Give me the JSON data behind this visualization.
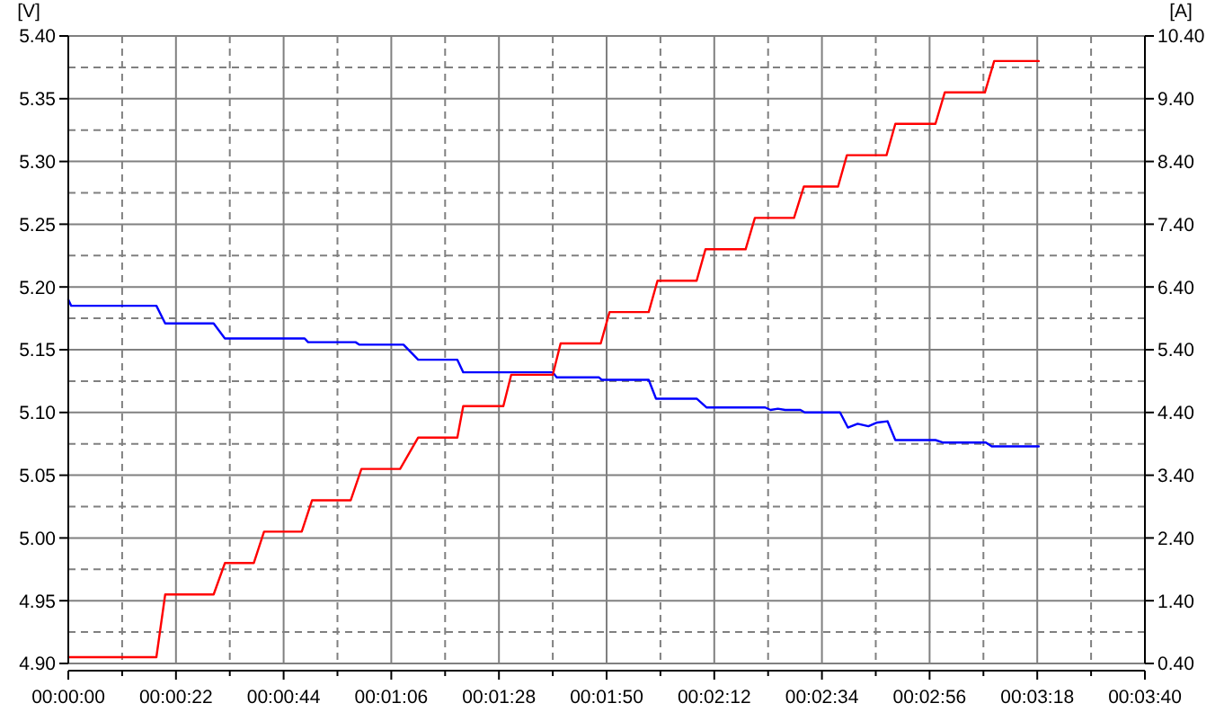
{
  "chart_data": {
    "type": "line",
    "ylabel": "[V]",
    "y2label": "[A]",
    "xlim": [
      0,
      220
    ],
    "xticks": [
      {
        "value": 0,
        "label": "00:00:00"
      },
      {
        "value": 11,
        "label": null
      },
      {
        "value": 22,
        "label": "00:00:22"
      },
      {
        "value": 33,
        "label": null
      },
      {
        "value": 44,
        "label": "00:00:44"
      },
      {
        "value": 55,
        "label": null
      },
      {
        "value": 66,
        "label": "00:01:06"
      },
      {
        "value": 77,
        "label": null
      },
      {
        "value": 88,
        "label": "00:01:28"
      },
      {
        "value": 99,
        "label": null
      },
      {
        "value": 110,
        "label": "00:01:50"
      },
      {
        "value": 121,
        "label": null
      },
      {
        "value": 132,
        "label": "00:02:12"
      },
      {
        "value": 143,
        "label": null
      },
      {
        "value": 154,
        "label": "00:02:34"
      },
      {
        "value": 165,
        "label": null
      },
      {
        "value": 176,
        "label": "00:02:56"
      },
      {
        "value": 187,
        "label": null
      },
      {
        "value": 198,
        "label": "00:03:18"
      },
      {
        "value": 209,
        "label": null
      },
      {
        "value": 220,
        "label": "00:03:40"
      }
    ],
    "ylim": [
      4.9,
      5.4
    ],
    "yticks": [
      {
        "value": 4.9,
        "label": "4.90"
      },
      {
        "value": 4.925,
        "label": null
      },
      {
        "value": 4.95,
        "label": "4.95"
      },
      {
        "value": 4.975,
        "label": null
      },
      {
        "value": 5.0,
        "label": "5.00"
      },
      {
        "value": 5.025,
        "label": null
      },
      {
        "value": 5.05,
        "label": "5.05"
      },
      {
        "value": 5.075,
        "label": null
      },
      {
        "value": 5.1,
        "label": "5.10"
      },
      {
        "value": 5.125,
        "label": null
      },
      {
        "value": 5.15,
        "label": "5.15"
      },
      {
        "value": 5.175,
        "label": null
      },
      {
        "value": 5.2,
        "label": "5.20"
      },
      {
        "value": 5.225,
        "label": null
      },
      {
        "value": 5.25,
        "label": "5.25"
      },
      {
        "value": 5.275,
        "label": null
      },
      {
        "value": 5.3,
        "label": "5.30"
      },
      {
        "value": 5.325,
        "label": null
      },
      {
        "value": 5.35,
        "label": "5.35"
      },
      {
        "value": 5.375,
        "label": null
      },
      {
        "value": 5.4,
        "label": "5.40"
      }
    ],
    "y2lim": [
      0.4,
      10.4
    ],
    "y2ticks": [
      {
        "value": 0.4,
        "label": "0.40"
      },
      {
        "value": 1.4,
        "label": "1.40"
      },
      {
        "value": 2.4,
        "label": "2.40"
      },
      {
        "value": 3.4,
        "label": "3.40"
      },
      {
        "value": 4.4,
        "label": "4.40"
      },
      {
        "value": 5.4,
        "label": "5.40"
      },
      {
        "value": 6.4,
        "label": "6.40"
      },
      {
        "value": 7.4,
        "label": "7.40"
      },
      {
        "value": 8.4,
        "label": "8.40"
      },
      {
        "value": 9.4,
        "label": "9.40"
      },
      {
        "value": 10.4,
        "label": "10.40"
      }
    ],
    "grid": true,
    "marker": "none",
    "line_style": "solid",
    "series": [
      {
        "color": "#0000ff",
        "axis": "y",
        "x": [
          0,
          0.6,
          18,
          19.8,
          29.7,
          32,
          48.3,
          49,
          58.7,
          59.5,
          68.5,
          71.5,
          79.5,
          80.7,
          99,
          99.8,
          108.4,
          109,
          118.6,
          120.1,
          128.4,
          130.4,
          142.4,
          143.5,
          145,
          146.5,
          149.6,
          150.5,
          157.7,
          159.3,
          161.3,
          163.5,
          165.3,
          167.4,
          169,
          177.2,
          178.8,
          187.5,
          188.7,
          198.3
        ],
        "values": [
          5.19,
          5.185,
          5.185,
          5.171,
          5.171,
          5.159,
          5.159,
          5.156,
          5.156,
          5.154,
          5.154,
          5.142,
          5.142,
          5.132,
          5.132,
          5.128,
          5.128,
          5.126,
          5.126,
          5.111,
          5.111,
          5.104,
          5.104,
          5.102,
          5.103,
          5.102,
          5.102,
          5.1,
          5.1,
          5.088,
          5.091,
          5.089,
          5.092,
          5.093,
          5.078,
          5.078,
          5.076,
          5.076,
          5.073,
          5.073
        ]
      },
      {
        "color": "#ff0000",
        "axis": "y2",
        "x": [
          0,
          18,
          19.8,
          29.7,
          32,
          37.9,
          40,
          47.7,
          49.8,
          57.7,
          59.9,
          67.8,
          71.5,
          79.5,
          80.7,
          88.9,
          90.5,
          99,
          100.6,
          108.8,
          110.6,
          118.6,
          120.4,
          128.4,
          130.2,
          138.4,
          140.3,
          148.3,
          150.3,
          157.3,
          159.1,
          167.2,
          169,
          177.2,
          179.1,
          187.3,
          189.2,
          198.3
        ],
        "values": [
          0.5,
          0.5,
          1.5,
          1.5,
          2.0,
          2.0,
          2.5,
          2.5,
          3.0,
          3.0,
          3.5,
          3.5,
          4.0,
          4.0,
          4.5,
          4.5,
          5.0,
          5.0,
          5.5,
          5.5,
          6.0,
          6.0,
          6.5,
          6.5,
          7.0,
          7.0,
          7.5,
          7.5,
          8.0,
          8.0,
          8.5,
          8.5,
          9.0,
          9.0,
          9.5,
          9.5,
          10.0,
          10.0
        ]
      }
    ]
  }
}
